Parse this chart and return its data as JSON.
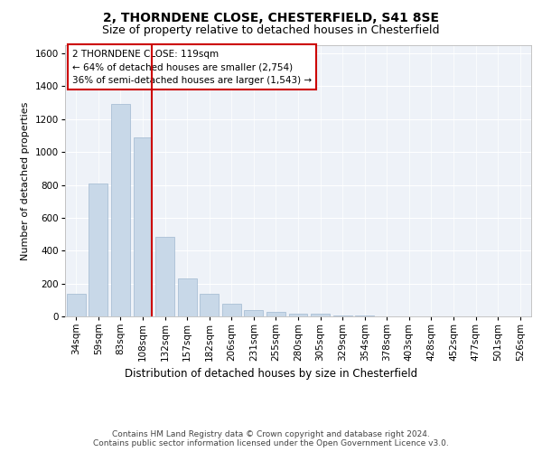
{
  "title1": "2, THORNDENE CLOSE, CHESTERFIELD, S41 8SE",
  "title2": "Size of property relative to detached houses in Chesterfield",
  "xlabel": "Distribution of detached houses by size in Chesterfield",
  "ylabel": "Number of detached properties",
  "categories": [
    "34sqm",
    "59sqm",
    "83sqm",
    "108sqm",
    "132sqm",
    "157sqm",
    "182sqm",
    "206sqm",
    "231sqm",
    "255sqm",
    "280sqm",
    "305sqm",
    "329sqm",
    "354sqm",
    "378sqm",
    "403sqm",
    "428sqm",
    "452sqm",
    "477sqm",
    "501sqm",
    "526sqm"
  ],
  "values": [
    140,
    810,
    1295,
    1090,
    485,
    230,
    135,
    75,
    40,
    25,
    18,
    15,
    8,
    3,
    2,
    2,
    1,
    0,
    0,
    0,
    0
  ],
  "bar_color": "#c8d8e8",
  "bar_edge_color": "#a0b8d0",
  "vline_color": "#cc0000",
  "annotation_text": "2 THORNDENE CLOSE: 119sqm\n← 64% of detached houses are smaller (2,754)\n36% of semi-detached houses are larger (1,543) →",
  "box_color": "#cc0000",
  "ylim": [
    0,
    1650
  ],
  "yticks": [
    0,
    200,
    400,
    600,
    800,
    1000,
    1200,
    1400,
    1600
  ],
  "background_color": "#eef2f8",
  "grid_color": "#ffffff",
  "footer": "Contains HM Land Registry data © Crown copyright and database right 2024.\nContains public sector information licensed under the Open Government Licence v3.0.",
  "title1_fontsize": 10,
  "title2_fontsize": 9,
  "xlabel_fontsize": 8.5,
  "ylabel_fontsize": 8,
  "tick_fontsize": 7.5,
  "annot_fontsize": 7.5,
  "footer_fontsize": 6.5
}
